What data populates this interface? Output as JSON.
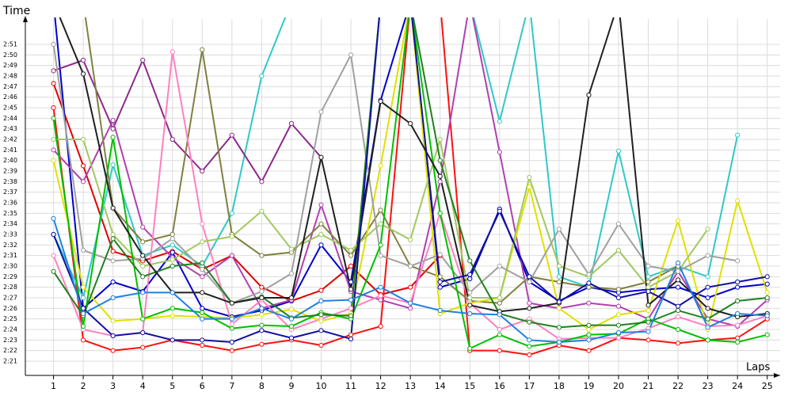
{
  "chart_data": {
    "type": "line",
    "ylabel": "Time",
    "xlabel": "Laps",
    "x": [
      1,
      2,
      3,
      4,
      5,
      6,
      7,
      8,
      9,
      10,
      11,
      12,
      13,
      14,
      15,
      16,
      17,
      18,
      19,
      20,
      21,
      22,
      23,
      24,
      25
    ],
    "xlim": [
      0,
      25.3
    ],
    "xticks": [
      1,
      2,
      3,
      4,
      5,
      6,
      7,
      8,
      9,
      10,
      11,
      12,
      13,
      14,
      15,
      16,
      17,
      18,
      19,
      20,
      21,
      22,
      23,
      24,
      25
    ],
    "ylim": [
      139.65,
      173.4
    ],
    "yticks": [
      {
        "value": 141,
        "label": "2:21"
      },
      {
        "value": 142,
        "label": "2:22"
      },
      {
        "value": 143,
        "label": "2:23"
      },
      {
        "value": 144,
        "label": "2:24"
      },
      {
        "value": 145,
        "label": "2:25"
      },
      {
        "value": 146,
        "label": "2:26"
      },
      {
        "value": 147,
        "label": "2:27"
      },
      {
        "value": 148,
        "label": "2:28"
      },
      {
        "value": 149,
        "label": "2:29"
      },
      {
        "value": 150,
        "label": "2:30"
      },
      {
        "value": 151,
        "label": "2:31"
      },
      {
        "value": 152,
        "label": "2:32"
      },
      {
        "value": 153,
        "label": "2:33"
      },
      {
        "value": 154,
        "label": "2:34"
      },
      {
        "value": 155,
        "label": "2:35"
      },
      {
        "value": 156,
        "label": "2:36"
      },
      {
        "value": 157,
        "label": "2:37"
      },
      {
        "value": 158,
        "label": "2:38"
      },
      {
        "value": 159,
        "label": "2:39"
      },
      {
        "value": 160,
        "label": "2:40"
      },
      {
        "value": 161,
        "label": "2:41"
      },
      {
        "value": 162,
        "label": "2:42"
      },
      {
        "value": 163,
        "label": "2:43"
      },
      {
        "value": 164,
        "label": "2:44"
      },
      {
        "value": 165,
        "label": "2:45"
      },
      {
        "value": 166,
        "label": "2:46"
      },
      {
        "value": 167,
        "label": "2:47"
      },
      {
        "value": 168,
        "label": "2:48"
      },
      {
        "value": 169,
        "label": "2:49"
      },
      {
        "value": 170,
        "label": "2:50"
      },
      {
        "value": 171,
        "label": "2:51"
      }
    ],
    "grid": true,
    "series": [
      {
        "color": "#e00000",
        "values": [
          167.3,
          159.5,
          151.4,
          150.5,
          151.4,
          149.7,
          151,
          148,
          146.7,
          147.7,
          150,
          147.3,
          148,
          151,
          null,
          null,
          null,
          null,
          null,
          null,
          null,
          null,
          null,
          null,
          null
        ]
      },
      {
        "color": "#ff1010",
        "values": [
          165,
          143,
          142,
          142.3,
          143,
          142.5,
          142,
          142.6,
          143,
          142.5,
          143.5,
          144.3,
          175,
          175,
          142,
          142,
          141.6,
          142.5,
          142,
          143.2,
          143,
          142.7,
          143,
          143.2,
          145
        ]
      },
      {
        "color": "#0000cc",
        "values": [
          175,
          146,
          148.5,
          147.6,
          151.3,
          146,
          145.2,
          145.8,
          146.7,
          152,
          148.5,
          165.7,
          175,
          148,
          148.8,
          155.4,
          148.5,
          146.7,
          148,
          147.5,
          147.8,
          148,
          147,
          148,
          148.3
        ]
      },
      {
        "color": "#30c8c8",
        "values": [
          153,
          147,
          159.6,
          151,
          152,
          150,
          155,
          168,
          175,
          175,
          175,
          175,
          175,
          175,
          175,
          163.7,
          175,
          149,
          148,
          160.9,
          149,
          150,
          149,
          162.4,
          null
        ]
      },
      {
        "color": "#8b2a8b",
        "values": [
          168.5,
          169.5,
          163,
          169.5,
          162,
          159,
          162.4,
          158,
          163.5,
          160.3,
          null,
          null,
          null,
          null,
          null,
          null,
          null,
          null,
          null,
          null,
          null,
          null,
          null,
          null,
          null
        ]
      },
      {
        "color": "#b040b0",
        "values": [
          161,
          158,
          163.8,
          153.7,
          150.8,
          149,
          151,
          146,
          146.8,
          155.8,
          147.6,
          146.8,
          146,
          158,
          175,
          160.8,
          146.5,
          146,
          146.5,
          146.2,
          145,
          149.5,
          145,
          144.3,
          146.8
        ]
      },
      {
        "color": "#808040",
        "values": [
          175,
          175,
          155.5,
          152.3,
          153,
          170.5,
          153,
          151,
          151.3,
          154,
          151,
          155.3,
          150,
          149,
          146.7,
          146.5,
          149,
          148.5,
          148,
          147.8,
          148.5,
          150,
          null,
          null,
          null
        ]
      },
      {
        "color": "#ff80c0",
        "values": [
          151,
          144,
          143.4,
          143.7,
          170.3,
          154,
          144.5,
          146.8,
          144,
          145,
          146,
          147.2,
          146.5,
          155,
          146.5,
          144,
          145,
          143.1,
          143.2,
          143.2,
          144.1,
          145.2,
          144.3,
          144.4,
          145.3
        ]
      },
      {
        "color": "#e0e000",
        "values": [
          160,
          148,
          144.8,
          145,
          145.3,
          145.2,
          145.1,
          145.4,
          145.9,
          144.8,
          145.5,
          159.5,
          175,
          145.5,
          146.5,
          147,
          157.5,
          146,
          144,
          145.4,
          145.8,
          154.3,
          144,
          156.2,
          147.5
        ]
      },
      {
        "color": "#a0c860",
        "values": [
          162,
          162,
          153,
          150,
          150.6,
          152.3,
          152.8,
          155.2,
          151.6,
          153,
          151.5,
          154,
          152.5,
          162,
          147,
          147,
          158.4,
          150,
          149,
          151.5,
          148,
          149.5,
          153.5,
          null,
          null
        ]
      },
      {
        "color": "#a0a0a0",
        "values": [
          171,
          151.5,
          150.5,
          150.7,
          152.6,
          149.7,
          146.5,
          147.6,
          149.3,
          164.6,
          170,
          151,
          150,
          151.1,
          147.5,
          150,
          148.5,
          153.5,
          149.2,
          154,
          150,
          149.5,
          151,
          150.5,
          null
        ]
      },
      {
        "color": "#00c000",
        "values": [
          164,
          144.3,
          162.2,
          145,
          146,
          145.6,
          144.1,
          144.4,
          144.3,
          145.6,
          145,
          152,
          175,
          155,
          142.2,
          143.5,
          142.4,
          142.8,
          143.5,
          143.6,
          145,
          144,
          143,
          142.8,
          143.5
        ]
      },
      {
        "color": "#208020",
        "values": [
          149.5,
          145.3,
          152.6,
          149,
          150,
          150.3,
          146.5,
          147.1,
          145.1,
          145.4,
          145.3,
          175,
          175,
          160,
          150.5,
          145.5,
          144.7,
          144.2,
          144.4,
          144.4,
          144.7,
          145.8,
          145,
          146.7,
          147
        ]
      },
      {
        "color": "#202020",
        "values": [
          175,
          168.2,
          155.5,
          151,
          147.5,
          147.5,
          146.5,
          147,
          147,
          160.3,
          147.8,
          165.6,
          163.5,
          158.5,
          146.3,
          145.7,
          146,
          146.5,
          166.2,
          175,
          146.3,
          148.7,
          146,
          145.2,
          145.5
        ]
      },
      {
        "color": "#1010a0",
        "values": [
          153,
          146,
          143.4,
          143.7,
          143,
          143,
          142.8,
          143.9,
          143.2,
          143.9,
          143.1,
          175,
          175,
          148.5,
          149.2,
          155.2,
          149,
          146.6,
          148.4,
          147,
          147.6,
          146.2,
          148,
          148.5,
          149
        ]
      },
      {
        "color": "#2080e0",
        "values": [
          154.5,
          145.5,
          147,
          147.5,
          147.5,
          145,
          145,
          146,
          145,
          146.7,
          146.8,
          148,
          146.5,
          145.8,
          145.5,
          145.4,
          143,
          142.8,
          143,
          143.7,
          143.8,
          150.3,
          144.2,
          145.5,
          145.3
        ]
      }
    ]
  }
}
